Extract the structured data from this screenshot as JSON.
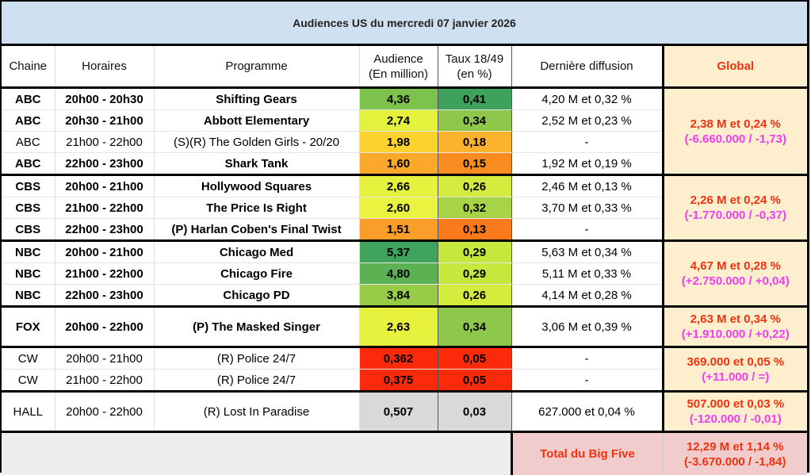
{
  "title": "Audiences US du mercredi 07 janvier 2026",
  "headers": {
    "chaine": "Chaine",
    "horaires": "Horaires",
    "programme": "Programme",
    "audience_l1": "Audience",
    "audience_l2": "(En million)",
    "taux_l1": "Taux 18/49",
    "taux_l2": "(en %)",
    "derniere": "Dernière diffusion",
    "global": "Global"
  },
  "rows": [
    {
      "chaine": "ABC",
      "horaires": "20h00 - 20h30",
      "programme": "Shifting Gears",
      "audience": "4,36",
      "taux": "0,41",
      "derniere": "4,20 M et 0,32 %",
      "bold": true,
      "aud_color": "#7cc24c",
      "taux_color": "#3fa25c"
    },
    {
      "chaine": "ABC",
      "horaires": "20h30 - 21h00",
      "programme": "Abbott Elementary",
      "audience": "2,74",
      "taux": "0,34",
      "derniere": "2,52 M et 0,23 %",
      "bold": true,
      "aud_color": "#e4f13d",
      "taux_color": "#8dc84b"
    },
    {
      "chaine": "ABC",
      "horaires": "21h00 - 22h00",
      "programme": "(S)(R) The Golden Girls - 20/20",
      "audience": "1,98",
      "taux": "0,18",
      "derniere": "-",
      "bold": false,
      "aud_color": "#fdd22f",
      "taux_color": "#fcb22c"
    },
    {
      "chaine": "ABC",
      "horaires": "22h00 - 23h00",
      "programme": "Shark Tank",
      "audience": "1,60",
      "taux": "0,15",
      "derniere": "1,92 M et 0,19 %",
      "bold": true,
      "aud_color": "#fba82b",
      "taux_color": "#fa8c22"
    },
    {
      "chaine": "CBS",
      "horaires": "20h00 - 21h00",
      "programme": "Hollywood Squares",
      "audience": "2,66",
      "taux": "0,26",
      "derniere": "2,46 M et 0,13 %",
      "bold": true,
      "aud_color": "#e6f23e",
      "taux_color": "#d4ec3d"
    },
    {
      "chaine": "CBS",
      "horaires": "21h00 - 22h00",
      "programme": "The Price Is Right",
      "audience": "2,60",
      "taux": "0,32",
      "derniere": "3,70 M et 0,33 %",
      "bold": true,
      "aud_color": "#eaf33f",
      "taux_color": "#a6d446"
    },
    {
      "chaine": "CBS",
      "horaires": "22h00 - 23h00",
      "programme": "(P) Harlan Coben's Final Twist",
      "audience": "1,51",
      "taux": "0,13",
      "derniere": "-",
      "bold": true,
      "aud_color": "#fa9d29",
      "taux_color": "#fb7a1c"
    },
    {
      "chaine": "NBC",
      "horaires": "20h00 - 21h00",
      "programme": "Chicago Med",
      "audience": "5,37",
      "taux": "0,29",
      "derniere": "5,63 M et 0,34 %",
      "bold": true,
      "aud_color": "#40a35c",
      "taux_color": "#c6e73c"
    },
    {
      "chaine": "NBC",
      "horaires": "21h00 - 22h00",
      "programme": "Chicago Fire",
      "audience": "4,80",
      "taux": "0,29",
      "derniere": "5,11 M et 0,33 %",
      "bold": true,
      "aud_color": "#5cb253",
      "taux_color": "#c6e73c"
    },
    {
      "chaine": "NBC",
      "horaires": "22h00 - 23h00",
      "programme": "Chicago PD",
      "audience": "3,84",
      "taux": "0,26",
      "derniere": "4,14 M et 0,28 %",
      "bold": true,
      "aud_color": "#98cc48",
      "taux_color": "#d4ec3d"
    },
    {
      "chaine": "FOX",
      "horaires": "20h00 - 22h00",
      "programme": "(P) The Masked Singer",
      "audience": "2,63",
      "taux": "0,34",
      "derniere": "3,06 M et 0,39 %",
      "bold": true,
      "aud_color": "#e6f23e",
      "taux_color": "#8dc84b"
    },
    {
      "chaine": "CW",
      "horaires": "20h00 - 21h00",
      "programme": "(R) Police 24/7",
      "audience": "0,362",
      "taux": "0,05",
      "derniere": "-",
      "bold": false,
      "aud_color": "#fb2a0a",
      "taux_color": "#fb2a0a"
    },
    {
      "chaine": "CW",
      "horaires": "21h00 - 22h00",
      "programme": "(R) Police 24/7",
      "audience": "0,375",
      "taux": "0,05",
      "derniere": "-",
      "bold": false,
      "aud_color": "#fb2a0a",
      "taux_color": "#fb2a0a"
    },
    {
      "chaine": "HALL",
      "horaires": "20h00 - 22h00",
      "programme": "(R) Lost In Paradise",
      "audience": "0,507",
      "taux": "0,03",
      "derniere": "627.000 et 0,04 %",
      "bold": false,
      "aud_color": "#d9d9d9",
      "taux_color": "#d9d9d9"
    }
  ],
  "globals": [
    {
      "network": "ABC",
      "main": "2,38 M et 0,24 %",
      "diff": "(-6.660.000 / -1,73)"
    },
    {
      "network": "CBS",
      "main": "2,26 M et 0,24 %",
      "diff": "(-1.770.000 / -0,37)"
    },
    {
      "network": "NBC",
      "main": "4,67 M et 0,28 %",
      "diff": "(+2.750.000 / +0,04)"
    },
    {
      "network": "FOX",
      "main": "2,63 M et 0,34 %",
      "diff": "(+1.910.000 / +0,22)"
    },
    {
      "network": "CW",
      "main": "369.000 et 0,05 %",
      "diff": "(+11.000 / =)"
    },
    {
      "network": "HALL",
      "main": "507.000 et 0,03 %",
      "diff": "(-120.000 / -0,01)"
    }
  ],
  "footer": {
    "label": "Total du Big Five",
    "main": "12,29 M et 1,14 %",
    "diff": "(-3.670.000 / -1,84)"
  },
  "colors": {
    "title_bg": "#cfe0f1",
    "global_bg": "#fdefce",
    "global_text": "#f2310f",
    "diff_text": "#f33cf5",
    "total_bg": "#f2cccc",
    "footer_blank_bg": "#eeeeee"
  }
}
